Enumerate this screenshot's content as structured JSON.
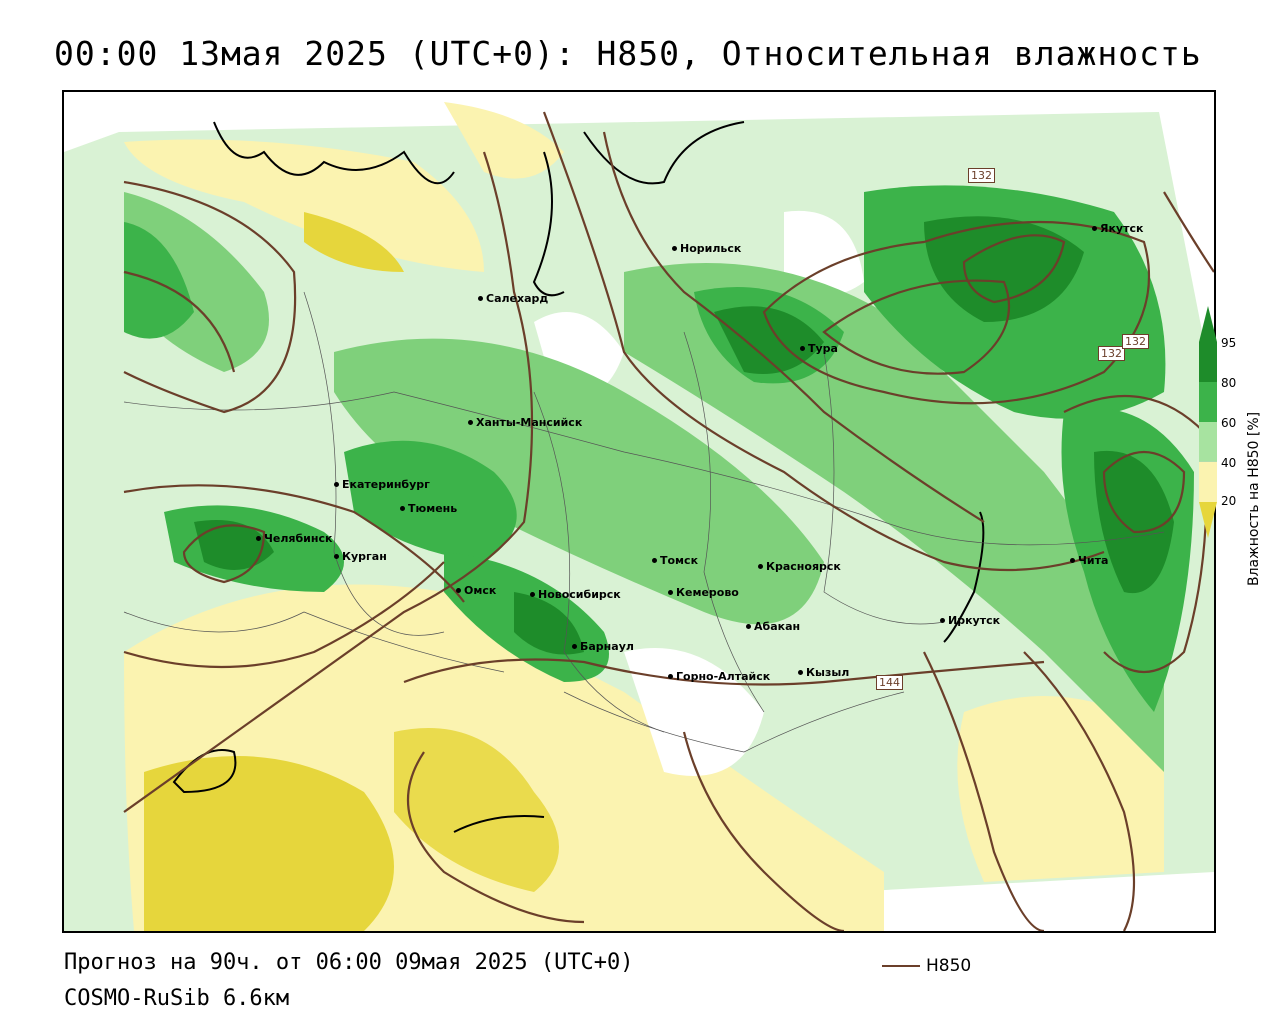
{
  "title": "00:00 13мая 2025 (UTC+0): H850, Относительная влажность",
  "footer": {
    "forecast": "Прогноз на 90ч. от 06:00 09мая 2025 (UTC+0)",
    "model": "COSMO-RuSib 6.6км"
  },
  "legend": {
    "contour_label": "H850",
    "contour_color": "#6b3f2a"
  },
  "colorbar": {
    "title": "Влажность на H850 [%]",
    "ticks": [
      "95",
      "80",
      "60",
      "40",
      "20"
    ],
    "colors": {
      "dark_green": "#1e8c2a",
      "green": "#3cb34a",
      "light_green": "#a7e3a0",
      "pale_yellow": "#fbf3b0",
      "yellow": "#e6d63c",
      "brown": "#6b3f2a"
    }
  },
  "cities": [
    {
      "name": "Норильск"
    },
    {
      "name": "Якутск"
    },
    {
      "name": "Салехард"
    },
    {
      "name": "Тура"
    },
    {
      "name": "Ханты-Мансийск"
    },
    {
      "name": "Екатеринбург"
    },
    {
      "name": "Тюмень"
    },
    {
      "name": "Челябинск"
    },
    {
      "name": "Курган"
    },
    {
      "name": "Омск"
    },
    {
      "name": "Новосибирск"
    },
    {
      "name": "Томск"
    },
    {
      "name": "Кемерово"
    },
    {
      "name": "Красноярск"
    },
    {
      "name": "Барнаул"
    },
    {
      "name": "Абакан"
    },
    {
      "name": "Иркутск"
    },
    {
      "name": "Чита"
    },
    {
      "name": "Горно-Алтайск"
    },
    {
      "name": "Кызыл"
    }
  ],
  "contour_labels": [
    "132",
    "132",
    "132",
    "144"
  ]
}
